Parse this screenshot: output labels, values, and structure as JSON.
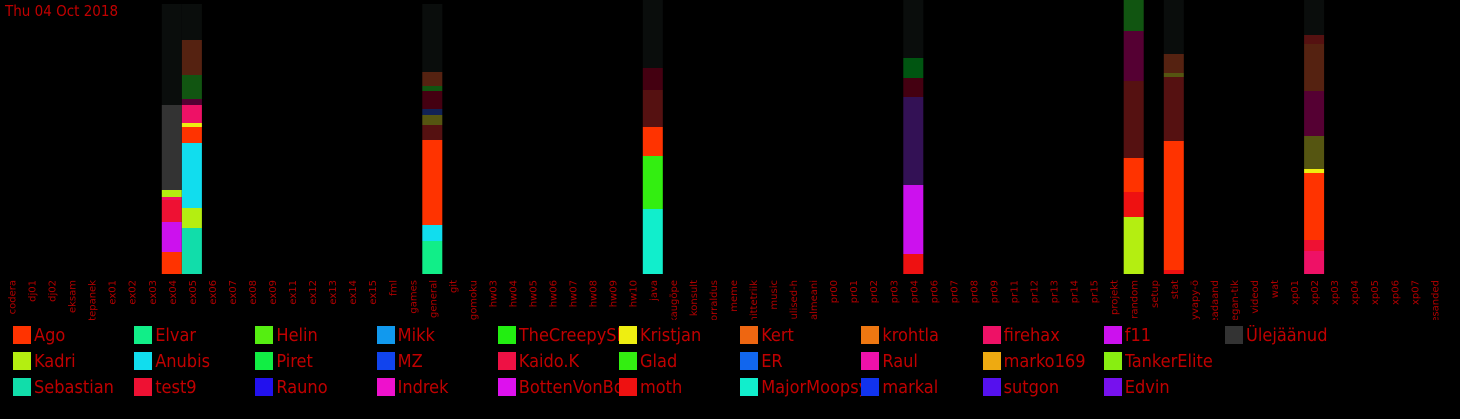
{
  "date_label": "Thu 04 Oct 2018",
  "chart_data": {
    "type": "bar",
    "stacked": true,
    "categories": [
      "codera",
      "dj01",
      "dj02",
      "eksam",
      "ettepanek",
      "ex01",
      "ex02",
      "ex03",
      "ex04",
      "ex05",
      "ex06",
      "ex07",
      "ex08",
      "ex09",
      "ex11",
      "ex12",
      "ex13",
      "ex14",
      "ex15",
      "fml",
      "games",
      "general",
      "git",
      "gomoku",
      "hw03",
      "hw04",
      "hw05",
      "hw06",
      "hw07",
      "hw08",
      "hw09",
      "hw10",
      "java",
      "kaugõpe",
      "konsult",
      "korraldus",
      "meme",
      "mittetriik",
      "music",
      "olulised-h",
      "palmeani",
      "pr00",
      "pr01",
      "pr02",
      "pr03",
      "pr04",
      "pr06",
      "pr07",
      "pr08",
      "pr09",
      "pr11",
      "pr12",
      "pr13",
      "pr14",
      "pr15",
      "projekt",
      "random",
      "setup",
      "stat",
      "syvapy-ö",
      "teadaand",
      "vegan-tik",
      "videod",
      "wat",
      "xp01",
      "xp02",
      "xp03",
      "xp04",
      "xp05",
      "xp06",
      "xp07",
      "ülesanded"
    ],
    "colors": {
      "Ago": "#ff3300",
      "Kadri": "#b4ee11",
      "Sebastian": "#11ddaa",
      "Elvar": "#11ee88",
      "Anubis": "#11ddee",
      "test9": "#ee1133",
      "Helin": "#55ee11",
      "Piret": "#11ee44",
      "Rauno": "#2211ee",
      "Mikk": "#1199ee",
      "MZ": "#1144ee",
      "Indrek": "#ee11cc",
      "TheCreepySh": "#22ee11",
      "Kaido.K": "#ee1144",
      "BottenVonBot": "#dd11ee",
      "Kristjan": "#eeee11",
      "Glad": "#33ee11",
      "moth": "#ee1111",
      "Kert": "#ee6611",
      "ER": "#1166ee",
      "MajorMoopsy": "#11eecc",
      "krohtla": "#ee7711",
      "Raul": "#ee11aa",
      "markal": "#1133ee",
      "firehax": "#ee1166",
      "marko169": "#eeaa11",
      "sutgon": "#5511ee",
      "f11": "#cc11ee",
      "TankerElite": "#88ee11",
      "Edvin": "#7711ee",
      "Ülejäänud": "#333333",
      "dark_olive": "#555511",
      "dark_red": "#551111",
      "dark_red2": "#440011",
      "dark_brown": "#552211",
      "dark_green": "#115511",
      "dark_green2": "#005511",
      "dark_purple": "#331155",
      "dark_blue": "#112255",
      "dark_magenta": "#550033",
      "remainder": "#0a0d0c"
    },
    "series_order_note": "segments listed bottom to top",
    "bars": [
      {
        "category": "ex04",
        "segments": [
          {
            "name": "Ago",
            "value": 22
          },
          {
            "name": "f11",
            "value": 30
          },
          {
            "name": "test9",
            "value": 22
          },
          {
            "name": "firehax",
            "value": 3
          },
          {
            "name": "Kadri",
            "value": 7
          },
          {
            "name": "Ülejäänud",
            "value": 85
          },
          {
            "name": "remainder",
            "value": 101
          }
        ]
      },
      {
        "category": "ex05",
        "segments": [
          {
            "name": "Sebastian",
            "value": 46
          },
          {
            "name": "Kadri",
            "value": 20
          },
          {
            "name": "Anubis",
            "value": 65
          },
          {
            "name": "Ago",
            "value": 16
          },
          {
            "name": "Kristjan",
            "value": 4
          },
          {
            "name": "firehax",
            "value": 18
          },
          {
            "name": "dark_magenta",
            "value": 6
          },
          {
            "name": "dark_green",
            "value": 24
          },
          {
            "name": "dark_brown",
            "value": 35
          },
          {
            "name": "remainder",
            "value": 36
          }
        ]
      },
      {
        "category": "general",
        "segments": [
          {
            "name": "Elvar",
            "value": 33
          },
          {
            "name": "Anubis",
            "value": 16
          },
          {
            "name": "Ago",
            "value": 85
          },
          {
            "name": "dark_red",
            "value": 15
          },
          {
            "name": "dark_olive",
            "value": 10
          },
          {
            "name": "dark_blue",
            "value": 6
          },
          {
            "name": "dark_red2",
            "value": 18
          },
          {
            "name": "dark_green",
            "value": 5
          },
          {
            "name": "dark_brown",
            "value": 14
          },
          {
            "name": "remainder",
            "value": 68
          }
        ]
      },
      {
        "category": "java",
        "segments": [
          {
            "name": "MajorMoopsy",
            "value": 65
          },
          {
            "name": "Glad",
            "value": 53
          },
          {
            "name": "Ago",
            "value": 29
          },
          {
            "name": "dark_red",
            "value": 37
          },
          {
            "name": "dark_red2",
            "value": 22
          },
          {
            "name": "remainder",
            "value": 68
          }
        ]
      },
      {
        "category": "pr04",
        "segments": [
          {
            "name": "moth",
            "value": 20
          },
          {
            "name": "f11",
            "value": 69
          },
          {
            "name": "dark_purple",
            "value": 88
          },
          {
            "name": "dark_red2",
            "value": 19
          },
          {
            "name": "dark_green2",
            "value": 20
          },
          {
            "name": "remainder",
            "value": 58
          }
        ]
      },
      {
        "category": "random",
        "segments": [
          {
            "name": "Kadri",
            "value": 57
          },
          {
            "name": "moth",
            "value": 25
          },
          {
            "name": "Ago",
            "value": 34
          },
          {
            "name": "dark_red",
            "value": 77
          },
          {
            "name": "dark_magenta",
            "value": 50
          },
          {
            "name": "dark_green",
            "value": 31
          }
        ]
      },
      {
        "category": "stat",
        "segments": [
          {
            "name": "moth",
            "value": 4
          },
          {
            "name": "Ago",
            "value": 129
          },
          {
            "name": "dark_red",
            "value": 64
          },
          {
            "name": "dark_olive",
            "value": 4
          },
          {
            "name": "dark_brown",
            "value": 19
          },
          {
            "name": "remainder",
            "value": 54
          }
        ]
      },
      {
        "category": "xp02",
        "segments": [
          {
            "name": "firehax",
            "value": 23
          },
          {
            "name": "test9",
            "value": 11
          },
          {
            "name": "Ago",
            "value": 67
          },
          {
            "name": "Kristjan",
            "value": 4
          },
          {
            "name": "dark_olive",
            "value": 33
          },
          {
            "name": "dark_magenta",
            "value": 45
          },
          {
            "name": "dark_brown",
            "value": 47
          },
          {
            "name": "dark_red",
            "value": 9
          },
          {
            "name": "remainder",
            "value": 35
          }
        ]
      }
    ],
    "legend": [
      {
        "name": "Ago",
        "color": "#ff3300"
      },
      {
        "name": "Kadri",
        "color": "#b4ee11"
      },
      {
        "name": "Sebastian",
        "color": "#11ddaa"
      },
      {
        "name": "Elvar",
        "color": "#11ee88"
      },
      {
        "name": "Anubis",
        "color": "#11ddee"
      },
      {
        "name": "test9",
        "color": "#ee1133"
      },
      {
        "name": "Helin",
        "color": "#55ee11"
      },
      {
        "name": "Piret",
        "color": "#11ee44"
      },
      {
        "name": "Rauno",
        "color": "#2211ee"
      },
      {
        "name": "Mikk",
        "color": "#1199ee"
      },
      {
        "name": "MZ",
        "color": "#1144ee"
      },
      {
        "name": "Indrek",
        "color": "#ee11cc"
      },
      {
        "name": "TheCreepySh",
        "color": "#22ee11"
      },
      {
        "name": "Kaido.K",
        "color": "#ee1144"
      },
      {
        "name": "BottenVonBot",
        "color": "#dd11ee"
      },
      {
        "name": "Kristjan",
        "color": "#eeee11"
      },
      {
        "name": "Glad",
        "color": "#33ee11"
      },
      {
        "name": "moth",
        "color": "#ee1111"
      },
      {
        "name": "Kert",
        "color": "#ee6611"
      },
      {
        "name": "ER",
        "color": "#1166ee"
      },
      {
        "name": "MajorMoopsy",
        "color": "#11eecc"
      },
      {
        "name": "krohtla",
        "color": "#ee7711"
      },
      {
        "name": "Raul",
        "color": "#ee11aa"
      },
      {
        "name": "markal",
        "color": "#1133ee"
      },
      {
        "name": "firehax",
        "color": "#ee1166"
      },
      {
        "name": "marko169",
        "color": "#eeaa11"
      },
      {
        "name": "sutgon",
        "color": "#5511ee"
      },
      {
        "name": "f11",
        "color": "#cc11ee"
      },
      {
        "name": "TankerElite",
        "color": "#88ee11"
      },
      {
        "name": "Edvin",
        "color": "#7711ee"
      },
      {
        "name": "Ülejäänud",
        "color": "#333333"
      }
    ],
    "legend_placement": "bottom",
    "grid": false,
    "ylim": [
      0,
      274
    ]
  }
}
